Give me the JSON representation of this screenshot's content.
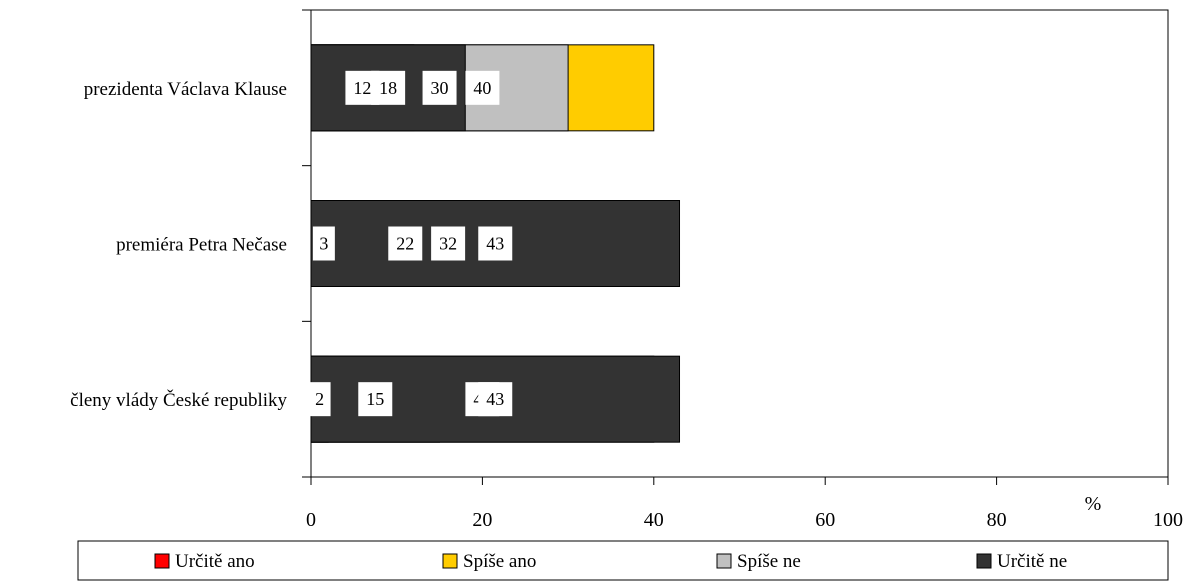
{
  "chart_data": {
    "type": "bar",
    "orientation": "horizontal",
    "stacked": true,
    "categories": [
      "prezidenta Václava Klause",
      "premiéra Petra Nečase",
      "členy vlády České republiky"
    ],
    "series": [
      {
        "name": "Určitě ano",
        "color": "#ff0000",
        "values": [
          12,
          3,
          2
        ]
      },
      {
        "name": "Spíše ano",
        "color": "#ffcc00",
        "values": [
          40,
          22,
          15
        ]
      },
      {
        "name": "Spíše ne",
        "color": "#c0c0c0",
        "values": [
          30,
          32,
          40
        ]
      },
      {
        "name": "Určitě ne",
        "color": "#333333",
        "values": [
          18,
          43,
          43
        ]
      }
    ],
    "x_ticks": [
      0,
      20,
      40,
      60,
      80,
      100
    ],
    "xlim": [
      0,
      100
    ],
    "x_unit_label": "%",
    "grid": false,
    "legend_position": "bottom"
  }
}
